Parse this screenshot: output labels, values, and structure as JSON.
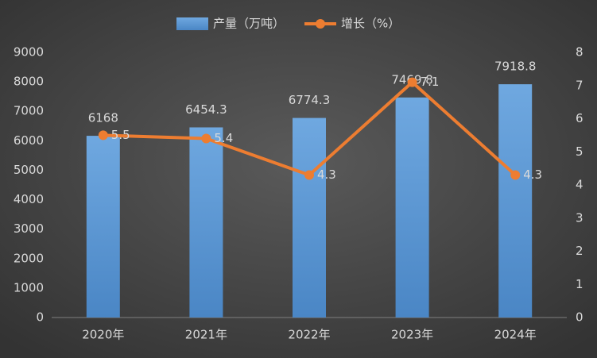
{
  "chart_data": {
    "type": "combo",
    "categories": [
      "2020年",
      "2021年",
      "2022年",
      "2023年",
      "2024年"
    ],
    "series": [
      {
        "name": "产量（万吨）",
        "type": "bar",
        "color": "#5b9bd5",
        "values": [
          6168,
          6454.3,
          6774.3,
          7469.8,
          7918.8
        ]
      },
      {
        "name": "增长（%）",
        "type": "line",
        "axis": "y2",
        "color": "#ed7d31",
        "values": [
          5.5,
          5.4,
          4.3,
          7.1,
          4.3
        ]
      }
    ],
    "ylim": [
      0,
      9000
    ],
    "yticks": [
      0,
      1000,
      2000,
      3000,
      4000,
      5000,
      6000,
      7000,
      8000,
      9000
    ],
    "y2lim": [
      0,
      8
    ],
    "y2ticks": [
      0,
      1,
      2,
      3,
      4,
      5,
      6,
      7,
      8
    ],
    "grid": false,
    "legend": "top"
  }
}
